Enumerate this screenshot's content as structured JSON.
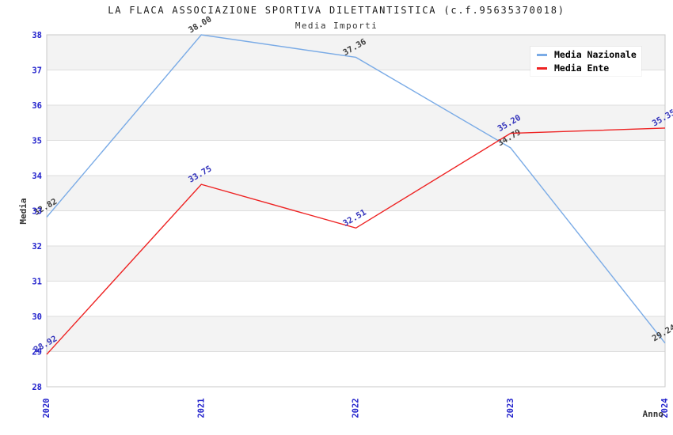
{
  "chart_data": {
    "type": "line",
    "title": "LA FLACA ASSOCIAZIONE SPORTIVA DILETTANTISTICA (c.f.95635370018)",
    "subtitle": "Media Importi",
    "xlabel": "Anno",
    "ylabel": "Media",
    "x": [
      "2020",
      "2021",
      "2022",
      "2023",
      "2024"
    ],
    "ylim": [
      28,
      38
    ],
    "yticks": [
      28,
      29,
      30,
      31,
      32,
      33,
      34,
      35,
      36,
      37,
      38
    ],
    "grid": "horizontal",
    "background_bands": true,
    "legend_position": "top-right",
    "series": [
      {
        "name": "Media Nazionale",
        "color": "#7aabe6",
        "label_color": "#3f3f3f",
        "values": [
          32.82,
          38.0,
          37.36,
          34.79,
          29.24
        ]
      },
      {
        "name": "Media Ente",
        "color": "#ee2222",
        "label_color": "#3333bb",
        "values": [
          28.92,
          33.75,
          32.51,
          35.2,
          35.35
        ]
      }
    ],
    "colors": {
      "tick_label": "#2222cc",
      "axis_title": "#333333",
      "band": "#f3f3f3",
      "gridline": "#dedede",
      "frame": "#c9c9c9"
    }
  }
}
